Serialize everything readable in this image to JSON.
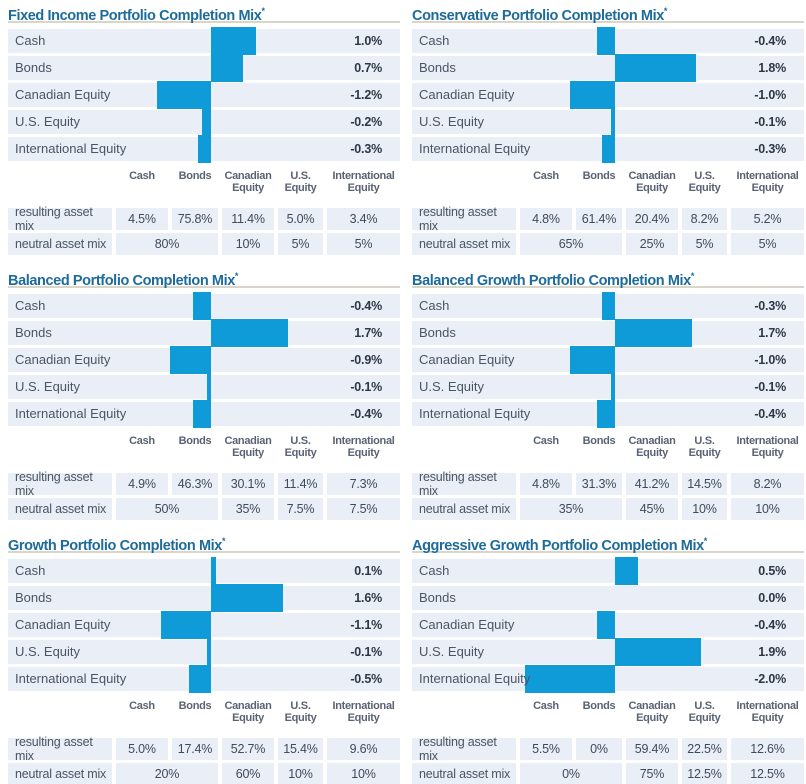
{
  "colors": {
    "title_blue": "#1c6b9b",
    "bar_blue": "#0f9bd7",
    "row_background": "#e9eef7",
    "header_text": "#5a6373",
    "value_text": "#2e3845",
    "footer_navy": "#17365d",
    "title_rule": "#d9d6c9"
  },
  "chart_data": [
    {
      "type": "bar",
      "orientation": "horizontal",
      "title": "Fixed Income Portfolio Completion Mix",
      "title_superscript": "*",
      "categories": [
        "Cash",
        "Bonds",
        "Canadian Equity",
        "U.S. Equity",
        "International Equity"
      ],
      "values": [
        1.0,
        0.7,
        -1.2,
        -0.2,
        -0.3
      ],
      "value_labels": [
        "1.0%",
        "0.7%",
        "-1.2%",
        "-0.2%",
        "-0.3%"
      ],
      "xlim": [
        -2.5,
        2.5
      ],
      "grid": false,
      "table": {
        "columns": [
          "Cash",
          "Bonds",
          "Canadian Equity",
          "U.S. Equity",
          "International Equity"
        ],
        "resulting_label": "resulting asset mix",
        "neutral_label": "neutral asset mix",
        "resulting": [
          "4.5%",
          "75.8%",
          "11.4%",
          "5.0%",
          "3.4%"
        ],
        "neutral": [
          "80%",
          "10%",
          "5%",
          "5%"
        ],
        "neutral_note": "first neutral value spans Cash and Bonds columns"
      }
    },
    {
      "type": "bar",
      "orientation": "horizontal",
      "title": "Conservative Portfolio Completion Mix",
      "title_superscript": "*",
      "categories": [
        "Cash",
        "Bonds",
        "Canadian Equity",
        "U.S. Equity",
        "International Equity"
      ],
      "values": [
        -0.4,
        1.8,
        -1.0,
        -0.1,
        -0.3
      ],
      "value_labels": [
        "-0.4%",
        "1.8%",
        "-1.0%",
        "-0.1%",
        "-0.3%"
      ],
      "xlim": [
        -2.5,
        2.5
      ],
      "grid": false,
      "table": {
        "columns": [
          "Cash",
          "Bonds",
          "Canadian Equity",
          "U.S. Equity",
          "International Equity"
        ],
        "resulting_label": "resulting asset mix",
        "neutral_label": "neutral asset mix",
        "resulting": [
          "4.8%",
          "61.4%",
          "20.4%",
          "8.2%",
          "5.2%"
        ],
        "neutral": [
          "65%",
          "25%",
          "5%",
          "5%"
        ],
        "neutral_note": "first neutral value spans Cash and Bonds columns"
      }
    },
    {
      "type": "bar",
      "orientation": "horizontal",
      "title": "Balanced Portfolio Completion Mix",
      "title_superscript": "*",
      "categories": [
        "Cash",
        "Bonds",
        "Canadian Equity",
        "U.S. Equity",
        "International Equity"
      ],
      "values": [
        -0.4,
        1.7,
        -0.9,
        -0.1,
        -0.4
      ],
      "value_labels": [
        "-0.4%",
        "1.7%",
        "-0.9%",
        "-0.1%",
        "-0.4%"
      ],
      "xlim": [
        -2.5,
        2.5
      ],
      "grid": false,
      "table": {
        "columns": [
          "Cash",
          "Bonds",
          "Canadian Equity",
          "U.S. Equity",
          "International Equity"
        ],
        "resulting_label": "resulting asset mix",
        "neutral_label": "neutral asset mix",
        "resulting": [
          "4.9%",
          "46.3%",
          "30.1%",
          "11.4%",
          "7.3%"
        ],
        "neutral": [
          "50%",
          "35%",
          "7.5%",
          "7.5%"
        ],
        "neutral_note": "first neutral value spans Cash and Bonds columns"
      }
    },
    {
      "type": "bar",
      "orientation": "horizontal",
      "title": "Balanced Growth Portfolio Completion Mix",
      "title_superscript": "*",
      "categories": [
        "Cash",
        "Bonds",
        "Canadian Equity",
        "U.S. Equity",
        "International Equity"
      ],
      "values": [
        -0.3,
        1.7,
        -1.0,
        -0.1,
        -0.4
      ],
      "value_labels": [
        "-0.3%",
        "1.7%",
        "-1.0%",
        "-0.1%",
        "-0.4%"
      ],
      "xlim": [
        -2.5,
        2.5
      ],
      "grid": false,
      "table": {
        "columns": [
          "Cash",
          "Bonds",
          "Canadian Equity",
          "U.S. Equity",
          "International Equity"
        ],
        "resulting_label": "resulting asset mix",
        "neutral_label": "neutral asset mix",
        "resulting": [
          "4.8%",
          "31.3%",
          "41.2%",
          "14.5%",
          "8.2%"
        ],
        "neutral": [
          "35%",
          "45%",
          "10%",
          "10%"
        ],
        "neutral_note": "first neutral value spans Cash and Bonds columns"
      }
    },
    {
      "type": "bar",
      "orientation": "horizontal",
      "title": "Growth Portfolio Completion Mix",
      "title_superscript": "*",
      "categories": [
        "Cash",
        "Bonds",
        "Canadian Equity",
        "U.S. Equity",
        "International Equity"
      ],
      "values": [
        0.1,
        1.6,
        -1.1,
        -0.1,
        -0.5
      ],
      "value_labels": [
        "0.1%",
        "1.6%",
        "-1.1%",
        "-0.1%",
        "-0.5%"
      ],
      "xlim": [
        -2.5,
        2.5
      ],
      "grid": false,
      "table": {
        "columns": [
          "Cash",
          "Bonds",
          "Canadian Equity",
          "U.S. Equity",
          "International Equity"
        ],
        "resulting_label": "resulting asset mix",
        "neutral_label": "neutral asset mix",
        "resulting": [
          "5.0%",
          "17.4%",
          "52.7%",
          "15.4%",
          "9.6%"
        ],
        "neutral": [
          "20%",
          "60%",
          "10%",
          "10%"
        ],
        "neutral_note": "first neutral value spans Cash and Bonds columns"
      }
    },
    {
      "type": "bar",
      "orientation": "horizontal",
      "title": "Aggressive Growth Portfolio Completion Mix",
      "title_superscript": "*",
      "categories": [
        "Cash",
        "Bonds",
        "Canadian Equity",
        "U.S. Equity",
        "International Equity"
      ],
      "values": [
        0.5,
        0.0,
        -0.4,
        1.9,
        -2.0
      ],
      "value_labels": [
        "0.5%",
        "0.0%",
        "-0.4%",
        "1.9%",
        "-2.0%"
      ],
      "xlim": [
        -2.5,
        2.5
      ],
      "grid": false,
      "table": {
        "columns": [
          "Cash",
          "Bonds",
          "Canadian Equity",
          "U.S. Equity",
          "International Equity"
        ],
        "resulting_label": "resulting asset mix",
        "neutral_label": "neutral asset mix",
        "resulting": [
          "5.5%",
          "0%",
          "59.4%",
          "22.5%",
          "12.6%"
        ],
        "neutral": [
          "0%",
          "75%",
          "12.5%",
          "12.5%"
        ],
        "neutral_note": "first neutral value spans Cash and Bonds columns"
      }
    }
  ]
}
